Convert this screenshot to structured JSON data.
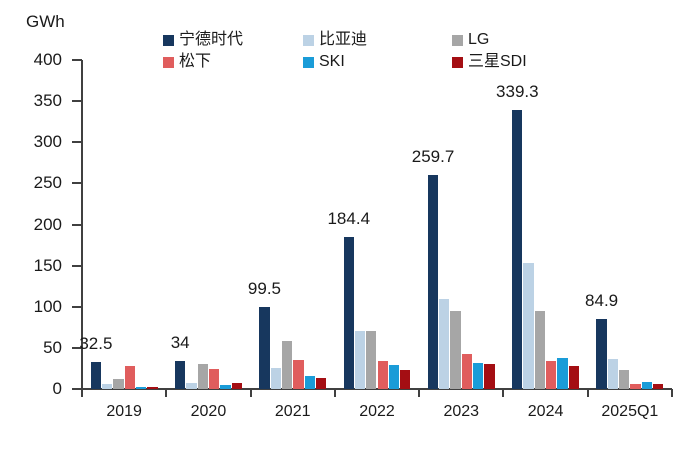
{
  "chart_data": {
    "type": "bar",
    "title": "",
    "ylabel": "GWh",
    "xlabel": "",
    "ylim": [
      0,
      400
    ],
    "ytick_interval": 50,
    "yticks": [
      0,
      50,
      100,
      150,
      200,
      250,
      300,
      350,
      400
    ],
    "grid": false,
    "legend_position": "top",
    "axis_color": "#404040",
    "text_color": "#1a1a1a",
    "categories": [
      "2019",
      "2020",
      "2021",
      "2022",
      "2023",
      "2024",
      "2025Q1"
    ],
    "series": [
      {
        "name": "宁德时代",
        "slug": "catl",
        "color": "#17375E",
        "values": [
          32.5,
          34,
          99.5,
          184.4,
          259.7,
          339.3,
          84.9
        ],
        "data_labels": [
          "32.5",
          "34",
          "99.5",
          "184.4",
          "259.7",
          "339.3",
          "84.9"
        ]
      },
      {
        "name": "比亚迪",
        "slug": "byd",
        "color": "#BCD2E5",
        "values": [
          6,
          7,
          25,
          70,
          110,
          153,
          36
        ]
      },
      {
        "name": "LG",
        "slug": "lg",
        "color": "#A6A6A6",
        "values": [
          12,
          30,
          58,
          71,
          95,
          95,
          23
        ]
      },
      {
        "name": "松下",
        "slug": "panasonic",
        "color": "#E05D5D",
        "values": [
          28,
          24,
          35,
          34,
          43,
          34,
          6
        ]
      },
      {
        "name": "SKI",
        "slug": "ski",
        "color": "#1A9CD8",
        "values": [
          2,
          5,
          16,
          29,
          32,
          38,
          9
        ]
      },
      {
        "name": "三星SDI",
        "slug": "samsung-sdi",
        "color": "#A40E13",
        "values": [
          3,
          7,
          13,
          23,
          31,
          28,
          6
        ]
      }
    ]
  }
}
